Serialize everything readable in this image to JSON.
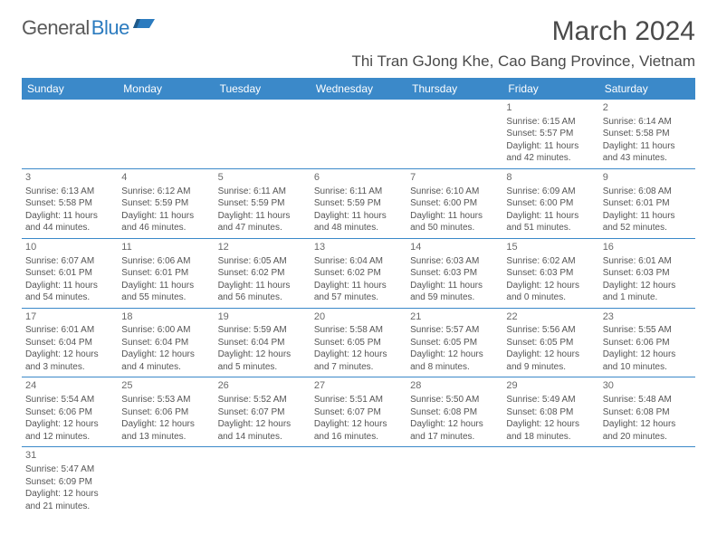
{
  "brand": {
    "part1": "General",
    "part2": "Blue"
  },
  "title": "March 2024",
  "location": "Thi Tran GJong Khe, Cao Bang Province, Vietnam",
  "colors": {
    "header_bg": "#3b89c9",
    "header_text": "#ffffff",
    "border": "#3b89c9",
    "text": "#555555",
    "title_text": "#4a4a4a",
    "logo_gray": "#5a5a5a",
    "logo_blue": "#2b7bbf",
    "background": "#ffffff"
  },
  "typography": {
    "month_title_size_pt": 22,
    "location_size_pt": 13,
    "dayheader_size_pt": 9,
    "cell_size_pt": 7.5
  },
  "day_headers": [
    "Sunday",
    "Monday",
    "Tuesday",
    "Wednesday",
    "Thursday",
    "Friday",
    "Saturday"
  ],
  "weeks": [
    [
      null,
      null,
      null,
      null,
      null,
      {
        "n": "1",
        "sunrise": "Sunrise: 6:15 AM",
        "sunset": "Sunset: 5:57 PM",
        "day1": "Daylight: 11 hours",
        "day2": "and 42 minutes."
      },
      {
        "n": "2",
        "sunrise": "Sunrise: 6:14 AM",
        "sunset": "Sunset: 5:58 PM",
        "day1": "Daylight: 11 hours",
        "day2": "and 43 minutes."
      }
    ],
    [
      {
        "n": "3",
        "sunrise": "Sunrise: 6:13 AM",
        "sunset": "Sunset: 5:58 PM",
        "day1": "Daylight: 11 hours",
        "day2": "and 44 minutes."
      },
      {
        "n": "4",
        "sunrise": "Sunrise: 6:12 AM",
        "sunset": "Sunset: 5:59 PM",
        "day1": "Daylight: 11 hours",
        "day2": "and 46 minutes."
      },
      {
        "n": "5",
        "sunrise": "Sunrise: 6:11 AM",
        "sunset": "Sunset: 5:59 PM",
        "day1": "Daylight: 11 hours",
        "day2": "and 47 minutes."
      },
      {
        "n": "6",
        "sunrise": "Sunrise: 6:11 AM",
        "sunset": "Sunset: 5:59 PM",
        "day1": "Daylight: 11 hours",
        "day2": "and 48 minutes."
      },
      {
        "n": "7",
        "sunrise": "Sunrise: 6:10 AM",
        "sunset": "Sunset: 6:00 PM",
        "day1": "Daylight: 11 hours",
        "day2": "and 50 minutes."
      },
      {
        "n": "8",
        "sunrise": "Sunrise: 6:09 AM",
        "sunset": "Sunset: 6:00 PM",
        "day1": "Daylight: 11 hours",
        "day2": "and 51 minutes."
      },
      {
        "n": "9",
        "sunrise": "Sunrise: 6:08 AM",
        "sunset": "Sunset: 6:01 PM",
        "day1": "Daylight: 11 hours",
        "day2": "and 52 minutes."
      }
    ],
    [
      {
        "n": "10",
        "sunrise": "Sunrise: 6:07 AM",
        "sunset": "Sunset: 6:01 PM",
        "day1": "Daylight: 11 hours",
        "day2": "and 54 minutes."
      },
      {
        "n": "11",
        "sunrise": "Sunrise: 6:06 AM",
        "sunset": "Sunset: 6:01 PM",
        "day1": "Daylight: 11 hours",
        "day2": "and 55 minutes."
      },
      {
        "n": "12",
        "sunrise": "Sunrise: 6:05 AM",
        "sunset": "Sunset: 6:02 PM",
        "day1": "Daylight: 11 hours",
        "day2": "and 56 minutes."
      },
      {
        "n": "13",
        "sunrise": "Sunrise: 6:04 AM",
        "sunset": "Sunset: 6:02 PM",
        "day1": "Daylight: 11 hours",
        "day2": "and 57 minutes."
      },
      {
        "n": "14",
        "sunrise": "Sunrise: 6:03 AM",
        "sunset": "Sunset: 6:03 PM",
        "day1": "Daylight: 11 hours",
        "day2": "and 59 minutes."
      },
      {
        "n": "15",
        "sunrise": "Sunrise: 6:02 AM",
        "sunset": "Sunset: 6:03 PM",
        "day1": "Daylight: 12 hours",
        "day2": "and 0 minutes."
      },
      {
        "n": "16",
        "sunrise": "Sunrise: 6:01 AM",
        "sunset": "Sunset: 6:03 PM",
        "day1": "Daylight: 12 hours",
        "day2": "and 1 minute."
      }
    ],
    [
      {
        "n": "17",
        "sunrise": "Sunrise: 6:01 AM",
        "sunset": "Sunset: 6:04 PM",
        "day1": "Daylight: 12 hours",
        "day2": "and 3 minutes."
      },
      {
        "n": "18",
        "sunrise": "Sunrise: 6:00 AM",
        "sunset": "Sunset: 6:04 PM",
        "day1": "Daylight: 12 hours",
        "day2": "and 4 minutes."
      },
      {
        "n": "19",
        "sunrise": "Sunrise: 5:59 AM",
        "sunset": "Sunset: 6:04 PM",
        "day1": "Daylight: 12 hours",
        "day2": "and 5 minutes."
      },
      {
        "n": "20",
        "sunrise": "Sunrise: 5:58 AM",
        "sunset": "Sunset: 6:05 PM",
        "day1": "Daylight: 12 hours",
        "day2": "and 7 minutes."
      },
      {
        "n": "21",
        "sunrise": "Sunrise: 5:57 AM",
        "sunset": "Sunset: 6:05 PM",
        "day1": "Daylight: 12 hours",
        "day2": "and 8 minutes."
      },
      {
        "n": "22",
        "sunrise": "Sunrise: 5:56 AM",
        "sunset": "Sunset: 6:05 PM",
        "day1": "Daylight: 12 hours",
        "day2": "and 9 minutes."
      },
      {
        "n": "23",
        "sunrise": "Sunrise: 5:55 AM",
        "sunset": "Sunset: 6:06 PM",
        "day1": "Daylight: 12 hours",
        "day2": "and 10 minutes."
      }
    ],
    [
      {
        "n": "24",
        "sunrise": "Sunrise: 5:54 AM",
        "sunset": "Sunset: 6:06 PM",
        "day1": "Daylight: 12 hours",
        "day2": "and 12 minutes."
      },
      {
        "n": "25",
        "sunrise": "Sunrise: 5:53 AM",
        "sunset": "Sunset: 6:06 PM",
        "day1": "Daylight: 12 hours",
        "day2": "and 13 minutes."
      },
      {
        "n": "26",
        "sunrise": "Sunrise: 5:52 AM",
        "sunset": "Sunset: 6:07 PM",
        "day1": "Daylight: 12 hours",
        "day2": "and 14 minutes."
      },
      {
        "n": "27",
        "sunrise": "Sunrise: 5:51 AM",
        "sunset": "Sunset: 6:07 PM",
        "day1": "Daylight: 12 hours",
        "day2": "and 16 minutes."
      },
      {
        "n": "28",
        "sunrise": "Sunrise: 5:50 AM",
        "sunset": "Sunset: 6:08 PM",
        "day1": "Daylight: 12 hours",
        "day2": "and 17 minutes."
      },
      {
        "n": "29",
        "sunrise": "Sunrise: 5:49 AM",
        "sunset": "Sunset: 6:08 PM",
        "day1": "Daylight: 12 hours",
        "day2": "and 18 minutes."
      },
      {
        "n": "30",
        "sunrise": "Sunrise: 5:48 AM",
        "sunset": "Sunset: 6:08 PM",
        "day1": "Daylight: 12 hours",
        "day2": "and 20 minutes."
      }
    ],
    [
      {
        "n": "31",
        "sunrise": "Sunrise: 5:47 AM",
        "sunset": "Sunset: 6:09 PM",
        "day1": "Daylight: 12 hours",
        "day2": "and 21 minutes."
      },
      null,
      null,
      null,
      null,
      null,
      null
    ]
  ]
}
